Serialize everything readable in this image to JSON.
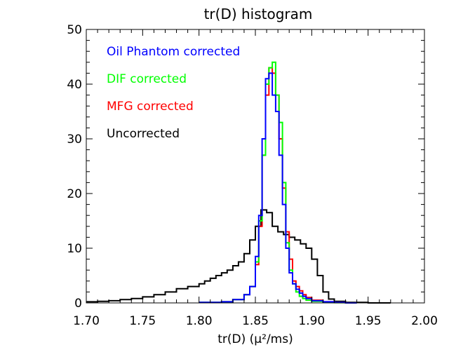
{
  "chart_data": {
    "type": "line",
    "title": "tr(D) histogram",
    "xlabel": "tr(D) (μ²/ms)",
    "ylabel": "",
    "xlim": [
      1.7,
      2.0
    ],
    "ylim": [
      0,
      50
    ],
    "x_ticks": [
      "1.70",
      "1.75",
      "1.80",
      "1.85",
      "1.90",
      "1.95",
      "2.00"
    ],
    "y_ticks": [
      "0",
      "10",
      "20",
      "30",
      "40",
      "50"
    ],
    "legend_position": "top-left",
    "series": [
      {
        "name": "Uncorrected",
        "color": "#000000",
        "x": [
          1.7,
          1.71,
          1.72,
          1.73,
          1.74,
          1.75,
          1.76,
          1.77,
          1.78,
          1.79,
          1.8,
          1.805,
          1.81,
          1.815,
          1.82,
          1.825,
          1.83,
          1.835,
          1.84,
          1.845,
          1.85,
          1.855,
          1.86,
          1.865,
          1.87,
          1.875,
          1.88,
          1.885,
          1.89,
          1.895,
          1.9,
          1.905,
          1.91,
          1.915,
          1.92,
          1.93,
          1.95
        ],
        "y": [
          0.2,
          0.3,
          0.4,
          0.6,
          0.8,
          1.1,
          1.5,
          2.0,
          2.6,
          3.0,
          3.5,
          4.0,
          4.5,
          5.0,
          5.5,
          6.0,
          6.8,
          7.5,
          9.0,
          11.5,
          14.0,
          17.0,
          16.5,
          14.0,
          13.0,
          12.5,
          12.0,
          11.5,
          10.8,
          10.0,
          8.0,
          5.0,
          2.0,
          0.7,
          0.3,
          0.1,
          0.0
        ]
      },
      {
        "name": "MFG corrected",
        "color": "#ff0000",
        "x": [
          1.8,
          1.82,
          1.83,
          1.84,
          1.845,
          1.85,
          1.853,
          1.856,
          1.859,
          1.862,
          1.865,
          1.868,
          1.871,
          1.874,
          1.877,
          1.88,
          1.883,
          1.886,
          1.889,
          1.892,
          1.895,
          1.9,
          1.91,
          1.92,
          1.93
        ],
        "y": [
          0.1,
          0.2,
          0.6,
          1.5,
          3.0,
          7.0,
          14.0,
          27.0,
          38.0,
          43.0,
          42.0,
          38.0,
          30.0,
          21.0,
          13.0,
          8.0,
          4.0,
          3.0,
          2.2,
          1.5,
          1.0,
          0.5,
          0.2,
          0.1,
          0.0
        ]
      },
      {
        "name": "DIF corrected",
        "color": "#00ff00",
        "x": [
          1.8,
          1.82,
          1.83,
          1.84,
          1.845,
          1.85,
          1.853,
          1.856,
          1.859,
          1.862,
          1.865,
          1.868,
          1.871,
          1.874,
          1.877,
          1.88,
          1.883,
          1.886,
          1.889,
          1.892,
          1.895,
          1.9,
          1.91,
          1.92,
          1.93
        ],
        "y": [
          0.1,
          0.2,
          0.6,
          1.5,
          3.0,
          7.5,
          15.0,
          27.0,
          40.0,
          43.0,
          44.0,
          38.0,
          33.0,
          22.0,
          11.0,
          6.0,
          3.5,
          2.0,
          1.2,
          0.8,
          0.5,
          0.3,
          0.1,
          0.05,
          0.0
        ]
      },
      {
        "name": "Oil Phantom corrected",
        "color": "#0000ff",
        "x": [
          1.8,
          1.82,
          1.83,
          1.84,
          1.845,
          1.85,
          1.853,
          1.856,
          1.859,
          1.862,
          1.865,
          1.868,
          1.871,
          1.874,
          1.877,
          1.88,
          1.883,
          1.886,
          1.889,
          1.892,
          1.895,
          1.9,
          1.91,
          1.92,
          1.93
        ],
        "y": [
          0.1,
          0.2,
          0.6,
          1.5,
          3.0,
          8.5,
          16.0,
          30.0,
          41.0,
          42.0,
          38.0,
          35.0,
          27.0,
          18.0,
          10.0,
          5.5,
          3.5,
          2.5,
          1.8,
          1.2,
          0.8,
          0.4,
          0.2,
          0.1,
          0.0
        ]
      }
    ],
    "legend": [
      {
        "label": "Oil Phantom corrected",
        "color": "#0000ff"
      },
      {
        "label": "DIF corrected",
        "color": "#00ff00"
      },
      {
        "label": "MFG corrected",
        "color": "#ff0000"
      },
      {
        "label": "Uncorrected",
        "color": "#000000"
      }
    ]
  }
}
